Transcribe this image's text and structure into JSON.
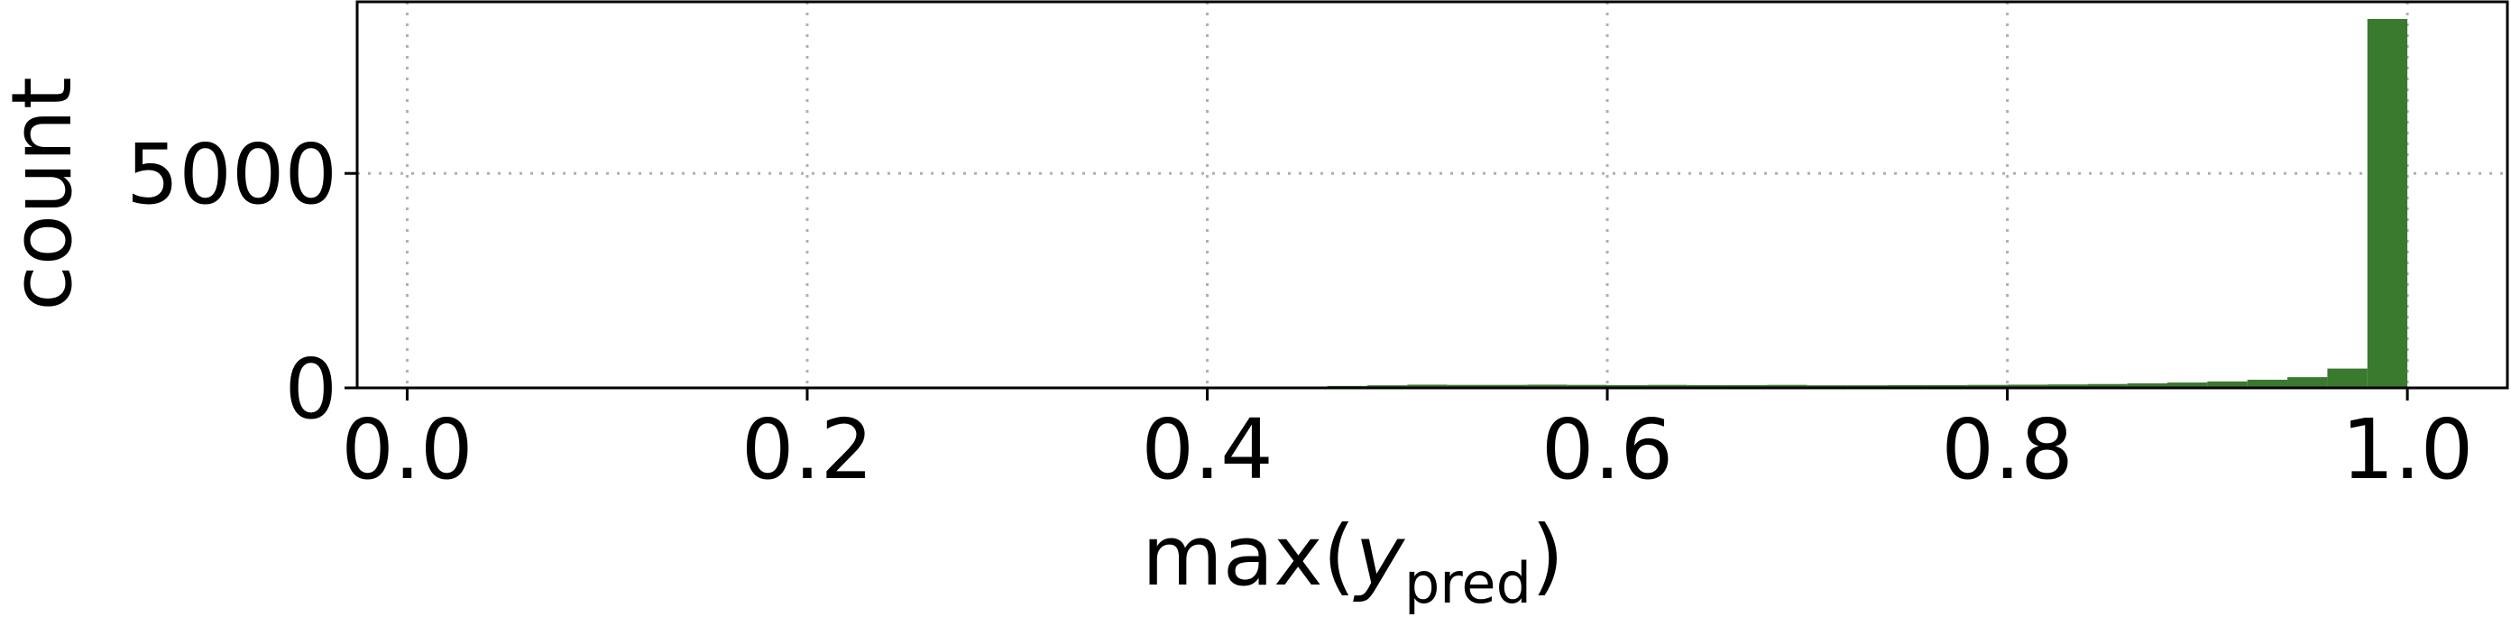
{
  "chart_data": {
    "type": "bar",
    "title": "",
    "xlabel_parts": {
      "main": "max(",
      "italic": "y",
      "sub": "pred",
      "close": ")"
    },
    "ylabel": "count",
    "xlim": [
      -0.025,
      1.05
    ],
    "ylim": [
      0,
      9000
    ],
    "xticks": [
      0.0,
      0.2,
      0.4,
      0.6,
      0.8,
      1.0
    ],
    "xtick_labels": [
      "0.0",
      "0.2",
      "0.4",
      "0.6",
      "0.8",
      "1.0"
    ],
    "yticks": [
      0,
      5000
    ],
    "ytick_labels": [
      "0",
      "5000"
    ],
    "grid": true,
    "bin_width": 0.02,
    "bins": [
      {
        "x0": 0.38,
        "count": 5
      },
      {
        "x0": 0.4,
        "count": 10
      },
      {
        "x0": 0.42,
        "count": 20
      },
      {
        "x0": 0.44,
        "count": 30
      },
      {
        "x0": 0.46,
        "count": 45
      },
      {
        "x0": 0.48,
        "count": 60
      },
      {
        "x0": 0.5,
        "count": 75
      },
      {
        "x0": 0.52,
        "count": 70
      },
      {
        "x0": 0.54,
        "count": 70
      },
      {
        "x0": 0.56,
        "count": 75
      },
      {
        "x0": 0.58,
        "count": 70
      },
      {
        "x0": 0.6,
        "count": 65
      },
      {
        "x0": 0.62,
        "count": 70
      },
      {
        "x0": 0.64,
        "count": 65
      },
      {
        "x0": 0.66,
        "count": 65
      },
      {
        "x0": 0.68,
        "count": 70
      },
      {
        "x0": 0.7,
        "count": 60
      },
      {
        "x0": 0.72,
        "count": 60
      },
      {
        "x0": 0.74,
        "count": 65
      },
      {
        "x0": 0.76,
        "count": 65
      },
      {
        "x0": 0.78,
        "count": 70
      },
      {
        "x0": 0.8,
        "count": 75
      },
      {
        "x0": 0.82,
        "count": 80
      },
      {
        "x0": 0.84,
        "count": 90
      },
      {
        "x0": 0.86,
        "count": 105
      },
      {
        "x0": 0.88,
        "count": 125
      },
      {
        "x0": 0.9,
        "count": 150
      },
      {
        "x0": 0.92,
        "count": 190
      },
      {
        "x0": 0.94,
        "count": 250
      },
      {
        "x0": 0.96,
        "count": 450
      },
      {
        "x0": 0.98,
        "count": 8600
      }
    ],
    "bar_color": "#3a7a2e"
  }
}
